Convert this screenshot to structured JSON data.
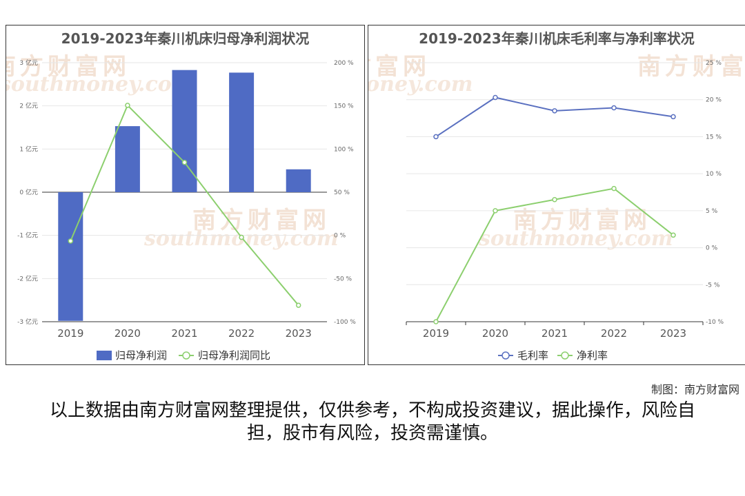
{
  "watermark": {
    "cn": "南方财富网",
    "en": "southmoney.com"
  },
  "chart_data": [
    {
      "type": "bar",
      "title": "2019-2023年秦川机床归母净利润状况",
      "categories": [
        "2019",
        "2020",
        "2021",
        "2022",
        "2023"
      ],
      "series": [
        {
          "name": "归母净利润",
          "type": "bar",
          "axis": "left",
          "color": "#4f6bc4",
          "values": [
            -2.98,
            1.53,
            2.83,
            2.77,
            0.53
          ]
        },
        {
          "name": "归母净利润同比",
          "type": "line",
          "axis": "right",
          "color": "#8ccf6e",
          "values": [
            -6.5,
            150.6,
            84.5,
            -2.3,
            -81.0
          ]
        }
      ],
      "left_axis": {
        "ticks": [
          -3,
          -2,
          -1,
          0,
          1,
          2,
          3
        ],
        "tick_labels": [
          "-3 亿元",
          "-2 亿元",
          "-1 亿元",
          "0 亿元",
          "1 亿元",
          "2 亿元",
          "3 亿元"
        ],
        "ylim": [
          -3,
          3
        ]
      },
      "right_axis": {
        "ticks": [
          -100,
          -50,
          0,
          50,
          100,
          150,
          200
        ],
        "tick_labels": [
          "-100 %",
          "-50 %",
          "0 %",
          "50 %",
          "100 %",
          "150 %",
          "200 %"
        ],
        "ylim": [
          -100,
          200
        ]
      },
      "grid": true,
      "legend_position": "bottom"
    },
    {
      "type": "line",
      "title": "2019-2023年秦川机床毛利率与净利率状况",
      "categories": [
        "2019",
        "2020",
        "2021",
        "2022",
        "2023"
      ],
      "series": [
        {
          "name": "毛利率",
          "color": "#5a70c0",
          "values": [
            15.0,
            20.3,
            18.5,
            18.9,
            17.7
          ]
        },
        {
          "name": "净利率",
          "color": "#8ccf6e",
          "values": [
            -10.0,
            5.0,
            6.5,
            8.0,
            1.7
          ]
        }
      ],
      "axis": {
        "ticks": [
          -10,
          -5,
          0,
          5,
          10,
          15,
          20,
          25
        ],
        "tick_labels": [
          "-10 %",
          "-5 %",
          "0 %",
          "5 %",
          "10 %",
          "15 %",
          "20 %",
          "25 %"
        ],
        "ylim": [
          -10,
          25
        ]
      },
      "grid": true,
      "legend_position": "bottom"
    }
  ],
  "footer": {
    "credit": "制图：南方财富网",
    "disclaimer": "以上数据由南方财富网整理提供，仅供参考，不构成投资建议，据此操作，风险自担，股市有风险，投资需谨慎。"
  }
}
